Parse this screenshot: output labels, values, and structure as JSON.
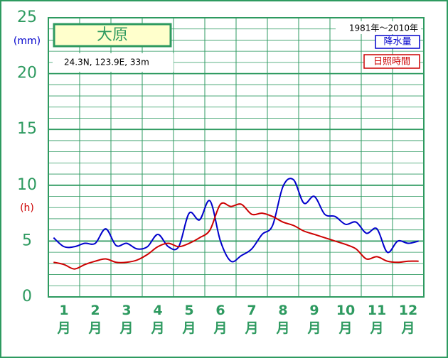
{
  "chart_data": {
    "type": "line",
    "title": "大原",
    "subtitle": "24.3N, 123.9E, 33m",
    "period": "1981年～2010年",
    "y_unit_precip": "(mm)",
    "y_unit_sun": "(h)",
    "categories": [
      null,
      "1月",
      null,
      null,
      "2月",
      null,
      null,
      "3月",
      null,
      null,
      "4月",
      null,
      null,
      "5月",
      null,
      null,
      "6月",
      null,
      null,
      "7月",
      null,
      null,
      "8月",
      null,
      null,
      "9月",
      null,
      null,
      "10月",
      null,
      null,
      "11月",
      null,
      null,
      "12月",
      null
    ],
    "series": [
      {
        "name": "降水量",
        "color": "#0000cc",
        "values": [
          5.3,
          4.5,
          4.5,
          4.8,
          4.8,
          6.1,
          4.6,
          4.8,
          4.3,
          4.5,
          5.6,
          4.5,
          4.5,
          7.5,
          6.9,
          8.6,
          5.0,
          3.2,
          3.7,
          4.3,
          5.6,
          6.4,
          9.9,
          10.5,
          8.4,
          9.0,
          7.4,
          7.2,
          6.5,
          6.7,
          5.7,
          6.1,
          4.0,
          5.0,
          4.8,
          5.0
        ]
      },
      {
        "name": "日照時間",
        "color": "#cc0000",
        "values": [
          3.1,
          2.9,
          2.5,
          2.9,
          3.2,
          3.4,
          3.1,
          3.1,
          3.3,
          3.8,
          4.5,
          4.8,
          4.5,
          4.8,
          5.3,
          6.0,
          8.3,
          8.1,
          8.3,
          7.4,
          7.5,
          7.2,
          6.7,
          6.4,
          5.9,
          5.6,
          5.3,
          5.0,
          4.7,
          4.3,
          3.4,
          3.6,
          3.2,
          3.1,
          3.2,
          3.2
        ]
      }
    ],
    "ylim": [
      0,
      25
    ],
    "yticks": [
      0,
      5,
      10,
      15,
      20,
      25
    ],
    "yminor": [
      1,
      2,
      3,
      4,
      6,
      7,
      8,
      9,
      11,
      12,
      13,
      14,
      16,
      17,
      18,
      19,
      21,
      22,
      23,
      24
    ],
    "grid": true,
    "grid_color": "#2e9a60"
  }
}
